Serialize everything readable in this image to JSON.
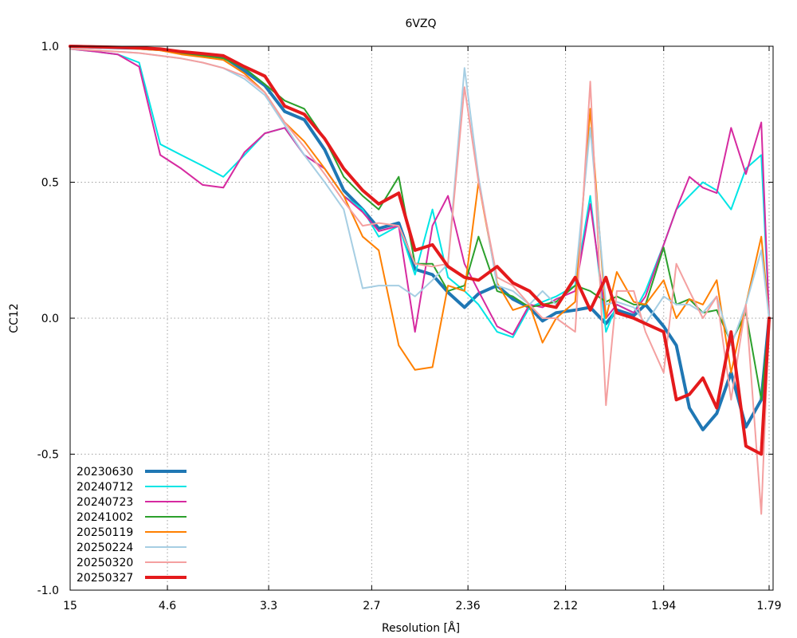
{
  "chart_data": {
    "type": "line",
    "title": "6VZQ",
    "xlabel": "Resolution [Å]",
    "ylabel": "CC12",
    "x_scale": "inverse-square resolution",
    "xlim": [
      15,
      1.785
    ],
    "ylim": [
      -1.0,
      1.0
    ],
    "x_ticks": [
      "15",
      "4.6",
      "3.3",
      "2.7",
      "2.36",
      "2.12",
      "1.94",
      "1.79"
    ],
    "x_tick_values": [
      15,
      4.6,
      3.3,
      2.7,
      2.36,
      2.12,
      1.94,
      1.79
    ],
    "y_ticks": [
      "1.0",
      "0.5",
      "0.0",
      "-0.5",
      "-1.0"
    ],
    "y_tick_values": [
      1.0,
      0.5,
      0.0,
      -0.5,
      -1.0
    ],
    "grid": true,
    "legend_position": "bottom-left",
    "x": [
      15.0,
      7.93,
      6.27,
      5.36,
      4.76,
      4.33,
      3.99,
      3.73,
      3.51,
      3.33,
      3.18,
      3.05,
      2.93,
      2.83,
      2.74,
      2.67,
      2.59,
      2.53,
      2.47,
      2.42,
      2.37,
      2.33,
      2.28,
      2.24,
      2.2,
      2.17,
      2.14,
      2.1,
      2.07,
      2.04,
      2.02,
      1.99,
      1.97,
      1.94,
      1.92,
      1.9,
      1.88,
      1.86,
      1.84,
      1.82,
      1.8,
      1.79
    ],
    "series": [
      {
        "name": "20230630",
        "color": "#1f77b4",
        "width": 4,
        "values": [
          1.0,
          0.997,
          0.995,
          0.993,
          0.988,
          0.975,
          0.968,
          0.962,
          0.91,
          0.855,
          0.76,
          0.73,
          0.62,
          0.47,
          0.4,
          0.33,
          0.35,
          0.18,
          0.16,
          0.095,
          0.04,
          0.09,
          0.12,
          0.07,
          0.04,
          -0.01,
          0.02,
          0.03,
          0.04,
          -0.02,
          0.03,
          0.01,
          0.05,
          -0.03,
          -0.1,
          -0.33,
          -0.41,
          -0.35,
          -0.2,
          -0.4,
          -0.3,
          0.0
        ]
      },
      {
        "name": "20240712",
        "color": "#00e5e5",
        "width": 2,
        "values": [
          0.99,
          0.98,
          0.97,
          0.94,
          0.64,
          0.6,
          0.56,
          0.52,
          0.6,
          0.68,
          0.7,
          0.6,
          0.55,
          0.45,
          0.4,
          0.3,
          0.34,
          0.16,
          0.4,
          0.15,
          0.1,
          0.05,
          -0.05,
          -0.07,
          0.04,
          0.06,
          0.08,
          0.12,
          0.45,
          -0.05,
          0.05,
          0.02,
          0.1,
          0.27,
          0.4,
          0.45,
          0.5,
          0.47,
          0.4,
          0.55,
          0.6,
          0.0
        ]
      },
      {
        "name": "20240723",
        "color": "#d62aa0",
        "width": 2,
        "values": [
          0.99,
          0.98,
          0.97,
          0.925,
          0.6,
          0.55,
          0.49,
          0.48,
          0.61,
          0.68,
          0.7,
          0.6,
          0.55,
          0.45,
          0.39,
          0.32,
          0.34,
          -0.05,
          0.34,
          0.45,
          0.2,
          0.1,
          -0.03,
          -0.06,
          0.05,
          0.04,
          0.07,
          0.1,
          0.42,
          0.0,
          0.05,
          0.02,
          0.08,
          0.27,
          0.4,
          0.52,
          0.48,
          0.46,
          0.7,
          0.53,
          0.72,
          0.0
        ]
      },
      {
        "name": "20241002",
        "color": "#2ca02c",
        "width": 2,
        "values": [
          1.0,
          0.997,
          0.995,
          0.993,
          0.988,
          0.975,
          0.965,
          0.955,
          0.92,
          0.86,
          0.8,
          0.77,
          0.66,
          0.52,
          0.45,
          0.4,
          0.52,
          0.2,
          0.2,
          0.1,
          0.12,
          0.3,
          0.1,
          0.08,
          0.04,
          0.05,
          0.06,
          0.12,
          0.1,
          0.06,
          0.08,
          0.05,
          0.05,
          0.26,
          0.05,
          0.07,
          0.02,
          0.03,
          -0.09,
          0.02,
          -0.3,
          0.0
        ]
      },
      {
        "name": "20250119",
        "color": "#ff8000",
        "width": 2,
        "values": [
          1.0,
          0.997,
          0.995,
          0.99,
          0.985,
          0.97,
          0.96,
          0.95,
          0.9,
          0.83,
          0.72,
          0.65,
          0.55,
          0.45,
          0.3,
          0.25,
          -0.1,
          -0.19,
          -0.18,
          0.12,
          0.1,
          0.5,
          0.13,
          0.03,
          0.05,
          -0.09,
          0.0,
          0.06,
          0.77,
          0.0,
          0.17,
          0.06,
          0.05,
          0.14,
          0.0,
          0.07,
          0.05,
          0.14,
          -0.2,
          0.05,
          0.3,
          0.0
        ]
      },
      {
        "name": "20250224",
        "color": "#a6cee3",
        "width": 2,
        "values": [
          0.99,
          0.985,
          0.98,
          0.975,
          0.965,
          0.955,
          0.94,
          0.92,
          0.88,
          0.82,
          0.71,
          0.6,
          0.5,
          0.4,
          0.11,
          0.12,
          0.12,
          0.08,
          0.14,
          0.2,
          0.92,
          0.52,
          0.12,
          0.1,
          0.05,
          0.1,
          0.05,
          0.14,
          0.7,
          0.05,
          0.06,
          0.04,
          -0.02,
          0.08,
          0.05,
          0.05,
          0.02,
          0.08,
          -0.1,
          0.05,
          0.25,
          0.0
        ]
      },
      {
        "name": "20250320",
        "color": "#f4a0a0",
        "width": 2,
        "values": [
          0.99,
          0.985,
          0.98,
          0.975,
          0.965,
          0.955,
          0.94,
          0.92,
          0.89,
          0.83,
          0.72,
          0.63,
          0.53,
          0.43,
          0.34,
          0.35,
          0.34,
          0.2,
          0.19,
          0.2,
          0.85,
          0.5,
          0.15,
          0.12,
          0.05,
          0.0,
          0.0,
          -0.05,
          0.87,
          -0.32,
          0.1,
          0.1,
          -0.05,
          -0.2,
          0.2,
          0.1,
          0.0,
          0.08,
          -0.3,
          0.05,
          -0.72,
          0.0
        ]
      },
      {
        "name": "20250327",
        "color": "#e41a1c",
        "width": 4,
        "values": [
          1.0,
          0.998,
          0.996,
          0.994,
          0.99,
          0.98,
          0.973,
          0.965,
          0.925,
          0.89,
          0.78,
          0.75,
          0.66,
          0.55,
          0.47,
          0.42,
          0.46,
          0.25,
          0.27,
          0.19,
          0.15,
          0.14,
          0.19,
          0.13,
          0.1,
          0.05,
          0.04,
          0.15,
          0.03,
          0.15,
          0.02,
          0.0,
          -0.02,
          -0.05,
          -0.3,
          -0.28,
          -0.22,
          -0.33,
          -0.05,
          -0.47,
          -0.5,
          0.0
        ]
      }
    ]
  }
}
